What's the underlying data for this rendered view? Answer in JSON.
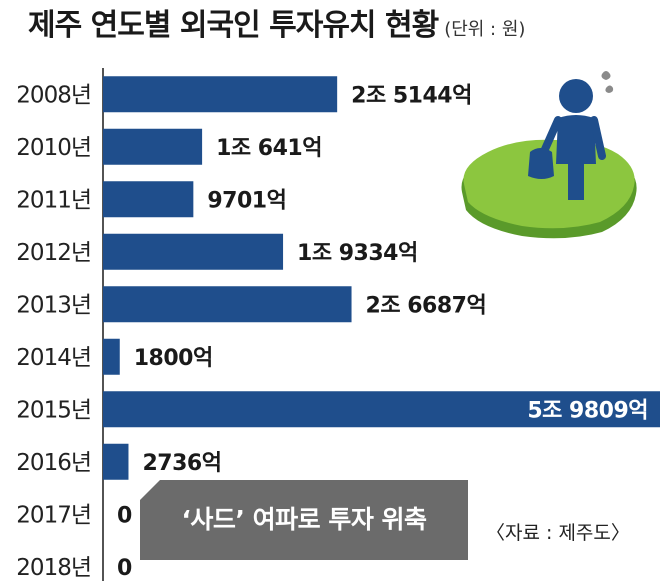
{
  "title": "제주 연도별 외국인 투자유치 현황",
  "unit": "(단위 : 원)",
  "annotation": "‘사드’ 여파로 투자 위축",
  "source": "〈자료 : 제주도〉",
  "colors": {
    "bar": "#1f4e8c",
    "note_box": "#6b6b6b",
    "island": "#8cc63f",
    "figure": "#1f4e8c"
  },
  "illustration": {
    "icons": [
      "island-icon",
      "person-with-bag-icon",
      "sweat-drop-icon"
    ]
  },
  "chart_data": {
    "type": "bar",
    "orientation": "horizontal",
    "title": "제주 연도별 외국인 투자유치 현황",
    "unit": "(단위 : 원)",
    "categories": [
      "2008년",
      "2010년",
      "2011년",
      "2012년",
      "2013년",
      "2014년",
      "2015년",
      "2016년",
      "2017년",
      "2018년"
    ],
    "values": [
      2514400000000,
      1064100000000,
      970100000000,
      1933400000000,
      2668700000000,
      180000000000,
      5980900000000,
      273600000000,
      0,
      0
    ],
    "labels": [
      "2조 5144억",
      "1조 641억",
      "9701억",
      "1조 9334억",
      "2조 6687억",
      "1800억",
      "5조 9809억",
      "2736억",
      "0",
      "0"
    ],
    "xlim": [
      0,
      5980900000000
    ],
    "axis_visible": false,
    "grid": false,
    "legend": "none"
  }
}
